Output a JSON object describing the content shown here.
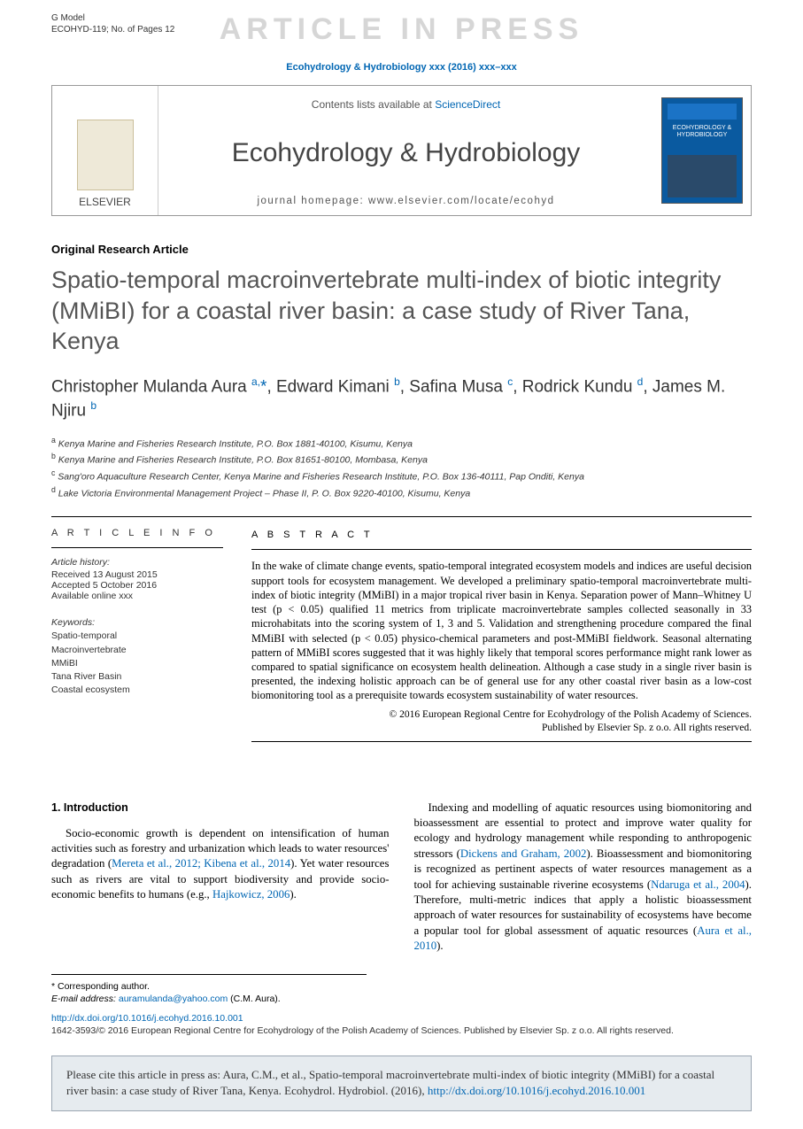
{
  "gmodel": {
    "line1": "G Model",
    "line2": "ECOHYD-119; No. of Pages 12"
  },
  "watermark": "ARTICLE IN PRESS",
  "journal_ref": "Ecohydrology & Hydrobiology xxx (2016) xxx–xxx",
  "masthead": {
    "contents_prefix": "Contents lists available at ",
    "sciencedirect": "ScienceDirect",
    "journal": "Ecohydrology & Hydrobiology",
    "homepage": "journal homepage: www.elsevier.com/locate/ecohyd",
    "elsevier": "ELSEVIER",
    "cover_label": "ECOHYDROLOGY & HYDROBIOLOGY"
  },
  "article_type": "Original Research Article",
  "title": "Spatio-temporal macroinvertebrate multi-index of biotic integrity (MMiBI) for a coastal river basin: a case study of River Tana, Kenya",
  "authors_html": "Christopher Mulanda Aura <sup>a,</sup><span class='star'>*</span>, Edward Kimani <sup>b</sup>, Safina Musa <sup>c</sup>, Rodrick Kundu <sup>d</sup>, James M. Njiru <sup>b</sup>",
  "affiliations": [
    "a Kenya Marine and Fisheries Research Institute, P.O. Box 1881-40100, Kisumu, Kenya",
    "b Kenya Marine and Fisheries Research Institute, P.O. Box 81651-80100, Mombasa, Kenya",
    "c Sang'oro Aquaculture Research Center, Kenya Marine and Fisheries Research Institute, P.O. Box 136-40111, Pap Onditi, Kenya",
    "d Lake Victoria Environmental Management Project – Phase II, P. O. Box 9220-40100, Kisumu, Kenya"
  ],
  "info": {
    "header": "A R T I C L E   I N F O",
    "history_label": "Article history:",
    "received": "Received 13 August 2015",
    "accepted": "Accepted 5 October 2016",
    "online": "Available online xxx",
    "keywords_label": "Keywords:",
    "keywords": [
      "Spatio-temporal",
      "Macroinvertebrate",
      "MMiBI",
      "Tana River Basin",
      "Coastal ecosystem"
    ]
  },
  "abstract": {
    "header": "A B S T R A C T",
    "text": "In the wake of climate change events, spatio-temporal integrated ecosystem models and indices are useful decision support tools for ecosystem management. We developed a preliminary spatio-temporal macroinvertebrate multi-index of biotic integrity (MMiBI) in a major tropical river basin in Kenya. Separation power of Mann–Whitney U test (p < 0.05) qualified 11 metrics from triplicate macroinvertebrate samples collected seasonally in 33 microhabitats into the scoring system of 1, 3 and 5. Validation and strengthening procedure compared the final MMiBI with selected (p < 0.05) physico-chemical parameters and post-MMiBI fieldwork. Seasonal alternating pattern of MMiBI scores suggested that it was highly likely that temporal scores performance might rank lower as compared to spatial significance on ecosystem health delineation. Although a case study in a single river basin is presented, the indexing holistic approach can be of general use for any other coastal river basin as a low-cost biomonitoring tool as a prerequisite towards ecosystem sustainability of water resources.",
    "copyright1": "© 2016 European Regional Centre for Ecohydrology of the Polish Academy of Sciences.",
    "copyright2": "Published by Elsevier Sp. z o.o. All rights reserved."
  },
  "section1": {
    "heading": "1. Introduction"
  },
  "col_left": "Socio-economic growth is dependent on intensification of human activities such as forestry and urbanization which leads to water resources' degradation (<span class='cite'>Mereta et al., 2012; Kibena et al., 2014</span>). Yet water resources such as rivers are vital to support biodiversity and provide socio-economic benefits to humans (e.g., <span class='cite'>Hajkowicz, 2006</span>).",
  "col_right": "Indexing and modelling of aquatic resources using biomonitoring and bioassessment are essential to protect and improve water quality for ecology and hydrology management while responding to anthropogenic stressors (<span class='cite'>Dickens and Graham, 2002</span>). Bioassessment and biomonitoring is recognized as pertinent aspects of water resources management as a tool for achieving sustainable riverine ecosystems (<span class='cite'>Ndaruga et al., 2004</span>). Therefore, multi-metric indices that apply a holistic bioassessment approach of water resources for sustainability of ecosystems have become a popular tool for global assessment of aquatic resources (<span class='cite'>Aura et al., 2010</span>).",
  "correspondence": {
    "label": "* Corresponding author.",
    "email_label": "E-mail address:",
    "email": "auramulanda@yahoo.com",
    "email_who": "(C.M. Aura)."
  },
  "doi": "http://dx.doi.org/10.1016/j.ecohyd.2016.10.001",
  "issn": "1642-3593/© 2016 European Regional Centre for Ecohydrology of the Polish Academy of Sciences. Published by Elsevier Sp. z o.o. All rights reserved.",
  "citebox": {
    "text": "Please cite this article in press as: Aura, C.M., et al., Spatio-temporal macroinvertebrate multi-index of biotic integrity (MMiBI) for a coastal river basin: a case study of River Tana, Kenya. Ecohydrol. Hydrobiol. (2016), ",
    "link": "http://dx.doi.org/10.1016/j.ecohyd.2016.10.001"
  }
}
